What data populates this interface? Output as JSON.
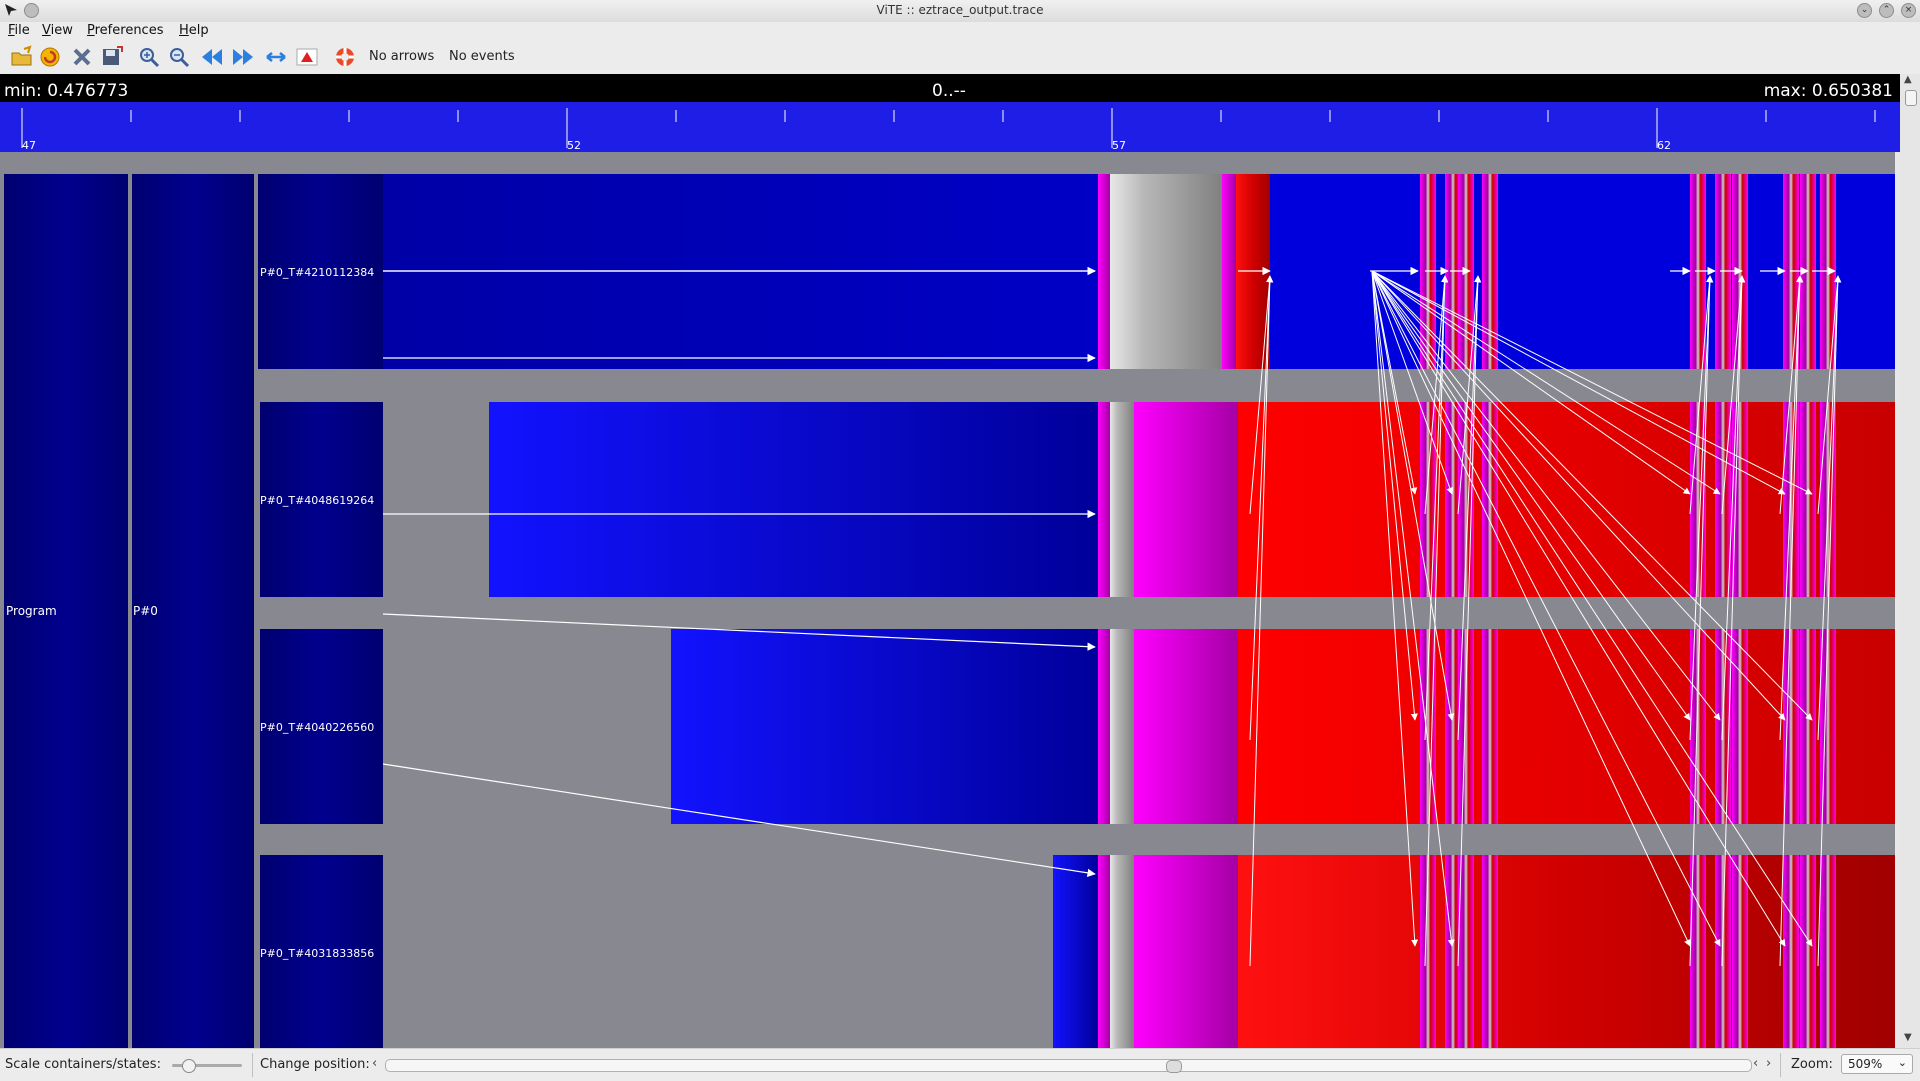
{
  "window": {
    "title": "ViTE :: eztrace_output.trace"
  },
  "menu": {
    "file": {
      "first": "F",
      "rest": "ile"
    },
    "view": {
      "first": "V",
      "rest": "iew"
    },
    "preferences": {
      "first": "P",
      "rest": "references"
    },
    "help": {
      "first": "H",
      "rest": "elp"
    }
  },
  "toolbar": {
    "icons": [
      "open-file-icon",
      "reload-icon",
      "close-icon",
      "export-icon",
      "zoom-in-icon",
      "zoom-out-icon",
      "scroll-left-icon",
      "scroll-right-icon",
      "fit-width-icon",
      "red-triangle-icon",
      "help-lifebuoy-icon"
    ],
    "arrows_label": "No arrows",
    "events_label": "No events"
  },
  "ruler": {
    "min_label": "min: 0.476773",
    "center_label": "0..--",
    "max_label": "max: 0.650381",
    "tick_labels": [
      "47",
      "52",
      "57",
      "62"
    ]
  },
  "containers": {
    "program": "Program",
    "process": "P#0",
    "threads": [
      "P#0_T#4210112384",
      "P#0_T#4048619264",
      "P#0_T#4040226560",
      "P#0_T#4031833856"
    ]
  },
  "colors": {
    "background": "#888890",
    "ruler_blue": "#1e1ee6",
    "container_navy": "#00007e",
    "state_blue": "#0000c0",
    "state_red": "#e00000",
    "state_magenta": "#e000e0",
    "state_gray": "#b0b0b0"
  },
  "bottom": {
    "scale_label": "Scale containers/states:",
    "scale_slider": 0.2,
    "change_position_label": "Change position:",
    "position_scroll": 0.58,
    "zoom_label": "Zoom:",
    "zoom_value": "509%"
  }
}
